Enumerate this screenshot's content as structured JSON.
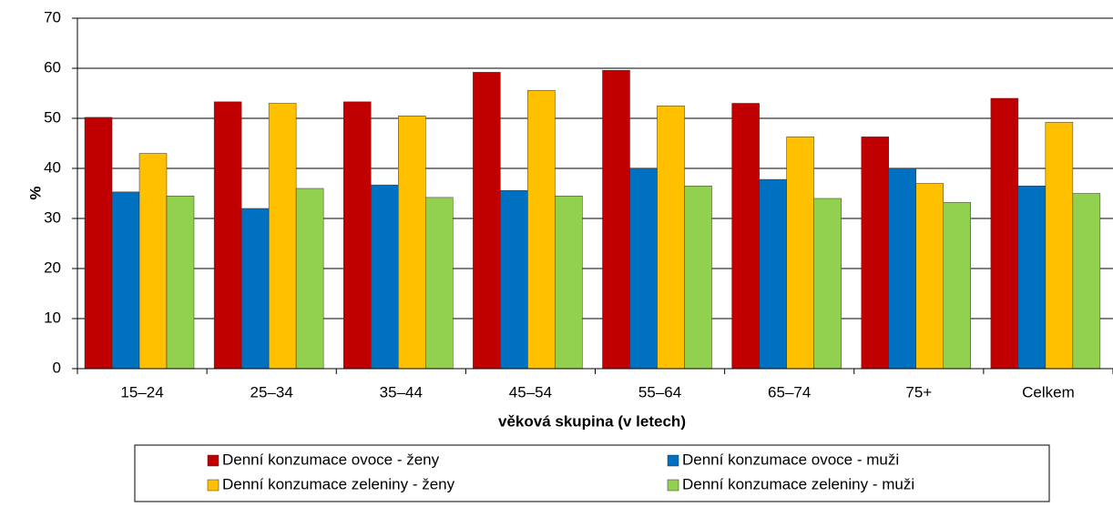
{
  "chart_data": {
    "type": "bar",
    "y_label": "%",
    "x_label": "věková skupina (v letech)",
    "categories": [
      "15–24",
      "25–34",
      "35–44",
      "45–54",
      "55–64",
      "65–74",
      "75+",
      "Celkem"
    ],
    "series": [
      {
        "name": "Denní konzumace ovoce - ženy",
        "color": "#c00000",
        "values": [
          50.2,
          53.3,
          53.3,
          59.2,
          59.6,
          53,
          46.3,
          54
        ]
      },
      {
        "name": "Denní konzumace ovoce - muži",
        "color": "#0070c0",
        "values": [
          35.3,
          32,
          36.7,
          35.6,
          40,
          37.8,
          40,
          36.5
        ]
      },
      {
        "name": "Denní konzumace zeleniny - ženy",
        "color": "#ffc000",
        "values": [
          43,
          53,
          50.5,
          55.6,
          52.5,
          46.3,
          37,
          49.2
        ]
      },
      {
        "name": "Denní konzumace zeleniny - muži",
        "color": "#92d050",
        "values": [
          34.5,
          36,
          34.2,
          34.5,
          36.5,
          34,
          33.2,
          35
        ]
      }
    ],
    "ylim": [
      0,
      70
    ],
    "yticks": [
      0,
      10,
      20,
      30,
      40,
      50,
      60,
      70
    ],
    "grid": true,
    "legend": "bottom"
  }
}
